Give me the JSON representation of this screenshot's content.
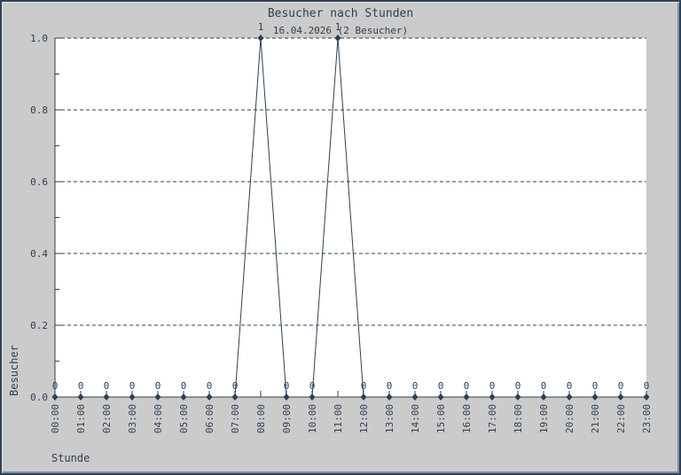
{
  "panel": {
    "background": "#cbcbcb",
    "plot_background": "#ffffff",
    "foreground": "#2e4054",
    "border_dark": "#2e4054",
    "border_shade": "#7e91a4",
    "border_highlight": "#e3e3e3"
  },
  "chart_data": {
    "type": "line",
    "title": "Besucher nach Stunden",
    "subtitle": "16.04.2026 (2 Besucher)",
    "xlabel": "Stunde",
    "ylabel": "Besucher",
    "categories": [
      "00:00",
      "01:00",
      "02:00",
      "03:00",
      "04:00",
      "05:00",
      "06:00",
      "07:00",
      "08:00",
      "09:00",
      "10:00",
      "11:00",
      "12:00",
      "13:00",
      "14:00",
      "15:00",
      "16:00",
      "17:00",
      "18:00",
      "19:00",
      "20:00",
      "21:00",
      "22:00",
      "23:00"
    ],
    "values": [
      0,
      0,
      0,
      0,
      0,
      0,
      0,
      0,
      1,
      0,
      0,
      1,
      0,
      0,
      0,
      0,
      0,
      0,
      0,
      0,
      0,
      0,
      0,
      0
    ],
    "ylim": [
      0,
      1
    ],
    "yticks_major": [
      0,
      0.2,
      0.4,
      0.6,
      0.8,
      1
    ],
    "ytick_labels": [
      "0.0",
      "0.2",
      "0.4",
      "0.6",
      "0.8",
      "1.0"
    ],
    "yticks_minor": [
      0.1,
      0.3,
      0.5,
      0.7,
      0.9
    ],
    "grid": "horizontal-dashed",
    "legend": "none",
    "marker": "filled-diamond",
    "point_labels": true
  }
}
